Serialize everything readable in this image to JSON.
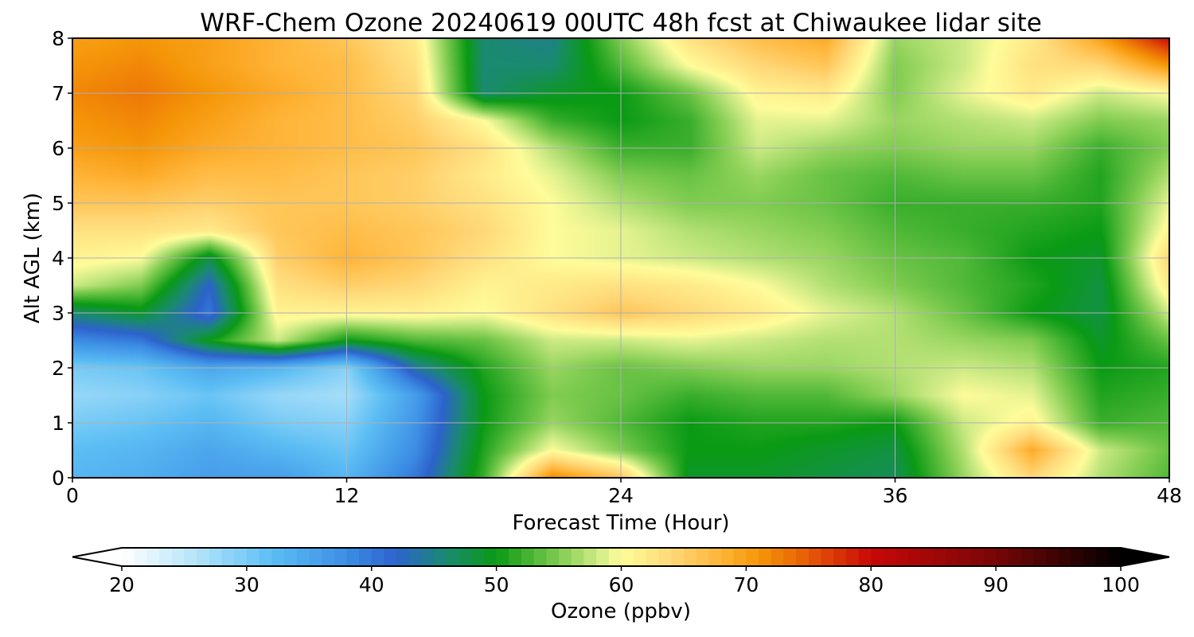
{
  "chart_data": {
    "type": "heatmap",
    "title": "WRF-Chem Ozone  20240619 00UTC 48h fcst at Chiwaukee lidar site",
    "xlabel": "Forecast Time (Hour)",
    "ylabel": "Alt AGL (km)",
    "xlim": [
      0,
      48
    ],
    "ylim": [
      0,
      8
    ],
    "x_ticks": [
      "0",
      "12",
      "24",
      "36",
      "48"
    ],
    "y_ticks": [
      "0",
      "1",
      "2",
      "3",
      "4",
      "5",
      "6",
      "7",
      "8"
    ],
    "grid": true,
    "x": [
      0,
      3,
      6,
      9,
      12,
      15,
      18,
      21,
      24,
      27,
      30,
      33,
      36,
      39,
      42,
      45,
      48
    ],
    "y": [
      0,
      0.5,
      1,
      1.5,
      2,
      2.5,
      3,
      3.5,
      4,
      4.5,
      5,
      5.5,
      6,
      6.5,
      7,
      7.5,
      8
    ],
    "z_unit": "ppbv",
    "z": [
      [
        33,
        34,
        36,
        36,
        33,
        40,
        52,
        72,
        66,
        49,
        49,
        48,
        47,
        56,
        64,
        57,
        53
      ],
      [
        32,
        33,
        35,
        33,
        31,
        38,
        51,
        60,
        55,
        50,
        50,
        49,
        48,
        57,
        69,
        58,
        54
      ],
      [
        30,
        31,
        33,
        30,
        29,
        37,
        50,
        56,
        53,
        50,
        51,
        51,
        50,
        58,
        61,
        52,
        53
      ],
      [
        28,
        29,
        31,
        28,
        27,
        36,
        50,
        55,
        54,
        52,
        53,
        53,
        56,
        60,
        59,
        51,
        52
      ],
      [
        30,
        31,
        35,
        33,
        29,
        44,
        51,
        56,
        54,
        55,
        56,
        56,
        57,
        58,
        57,
        50,
        51
      ],
      [
        38,
        40,
        50,
        58,
        50,
        53,
        54,
        58,
        58,
        59,
        58,
        57,
        57,
        56,
        55,
        49,
        54
      ],
      [
        46,
        49,
        40,
        61,
        61,
        61,
        60,
        63,
        66,
        64,
        62,
        59,
        57,
        54,
        50,
        48,
        58
      ],
      [
        58,
        55,
        42,
        63,
        65,
        64,
        61,
        62,
        63,
        62,
        60,
        57,
        55,
        53,
        51,
        48,
        62
      ],
      [
        61,
        60,
        48,
        65,
        68,
        66,
        63,
        60,
        59,
        58,
        57,
        56,
        54,
        53,
        50,
        49,
        64
      ],
      [
        63,
        63,
        62,
        66,
        67,
        66,
        64,
        60,
        59,
        57,
        56,
        55,
        53,
        52,
        51,
        50,
        61
      ],
      [
        66,
        66,
        65,
        66,
        66,
        65,
        63,
        60,
        57,
        55,
        55,
        54,
        52,
        52,
        52,
        51,
        59
      ],
      [
        68,
        69,
        67,
        67,
        66,
        65,
        62,
        59,
        55,
        54,
        56,
        54,
        53,
        54,
        54,
        51,
        57
      ],
      [
        70,
        71,
        69,
        68,
        67,
        66,
        63,
        57,
        52,
        52,
        58,
        56,
        55,
        56,
        56,
        52,
        55
      ],
      [
        71,
        72,
        70,
        68,
        67,
        65,
        60,
        52,
        50,
        52,
        59,
        59,
        56,
        57,
        58,
        55,
        56
      ],
      [
        72,
        73,
        71,
        69,
        67,
        64,
        46,
        49,
        50,
        54,
        61,
        62,
        55,
        59,
        62,
        58,
        60
      ],
      [
        71,
        72,
        70,
        68,
        67,
        63,
        46,
        46,
        53,
        60,
        64,
        66,
        55,
        58,
        63,
        64,
        71
      ],
      [
        70,
        71,
        70,
        68,
        66,
        62,
        46,
        45,
        55,
        63,
        67,
        69,
        56,
        58,
        62,
        70,
        80
      ]
    ],
    "colorbar": {
      "label": "Ozone  (ppbv)",
      "min": 20,
      "max": 100,
      "ticks": [
        "20",
        "30",
        "40",
        "50",
        "60",
        "70",
        "80",
        "90",
        "100"
      ],
      "extend": "both",
      "colors": [
        {
          "v": 20,
          "c": "#ffffff"
        },
        {
          "v": 26,
          "c": "#b4e4fa"
        },
        {
          "v": 32,
          "c": "#5cbef4"
        },
        {
          "v": 38,
          "c": "#3c8ee4"
        },
        {
          "v": 42,
          "c": "#2d63cc"
        },
        {
          "v": 46,
          "c": "#1a8a70"
        },
        {
          "v": 50,
          "c": "#0a9a14"
        },
        {
          "v": 55,
          "c": "#80cc50"
        },
        {
          "v": 58,
          "c": "#ccea84"
        },
        {
          "v": 60,
          "c": "#fffc9a"
        },
        {
          "v": 64,
          "c": "#ffd878"
        },
        {
          "v": 68,
          "c": "#ffb438"
        },
        {
          "v": 71,
          "c": "#f59608"
        },
        {
          "v": 75,
          "c": "#e65a06"
        },
        {
          "v": 80,
          "c": "#c80808"
        },
        {
          "v": 90,
          "c": "#780606"
        },
        {
          "v": 100,
          "c": "#000000"
        }
      ]
    }
  }
}
